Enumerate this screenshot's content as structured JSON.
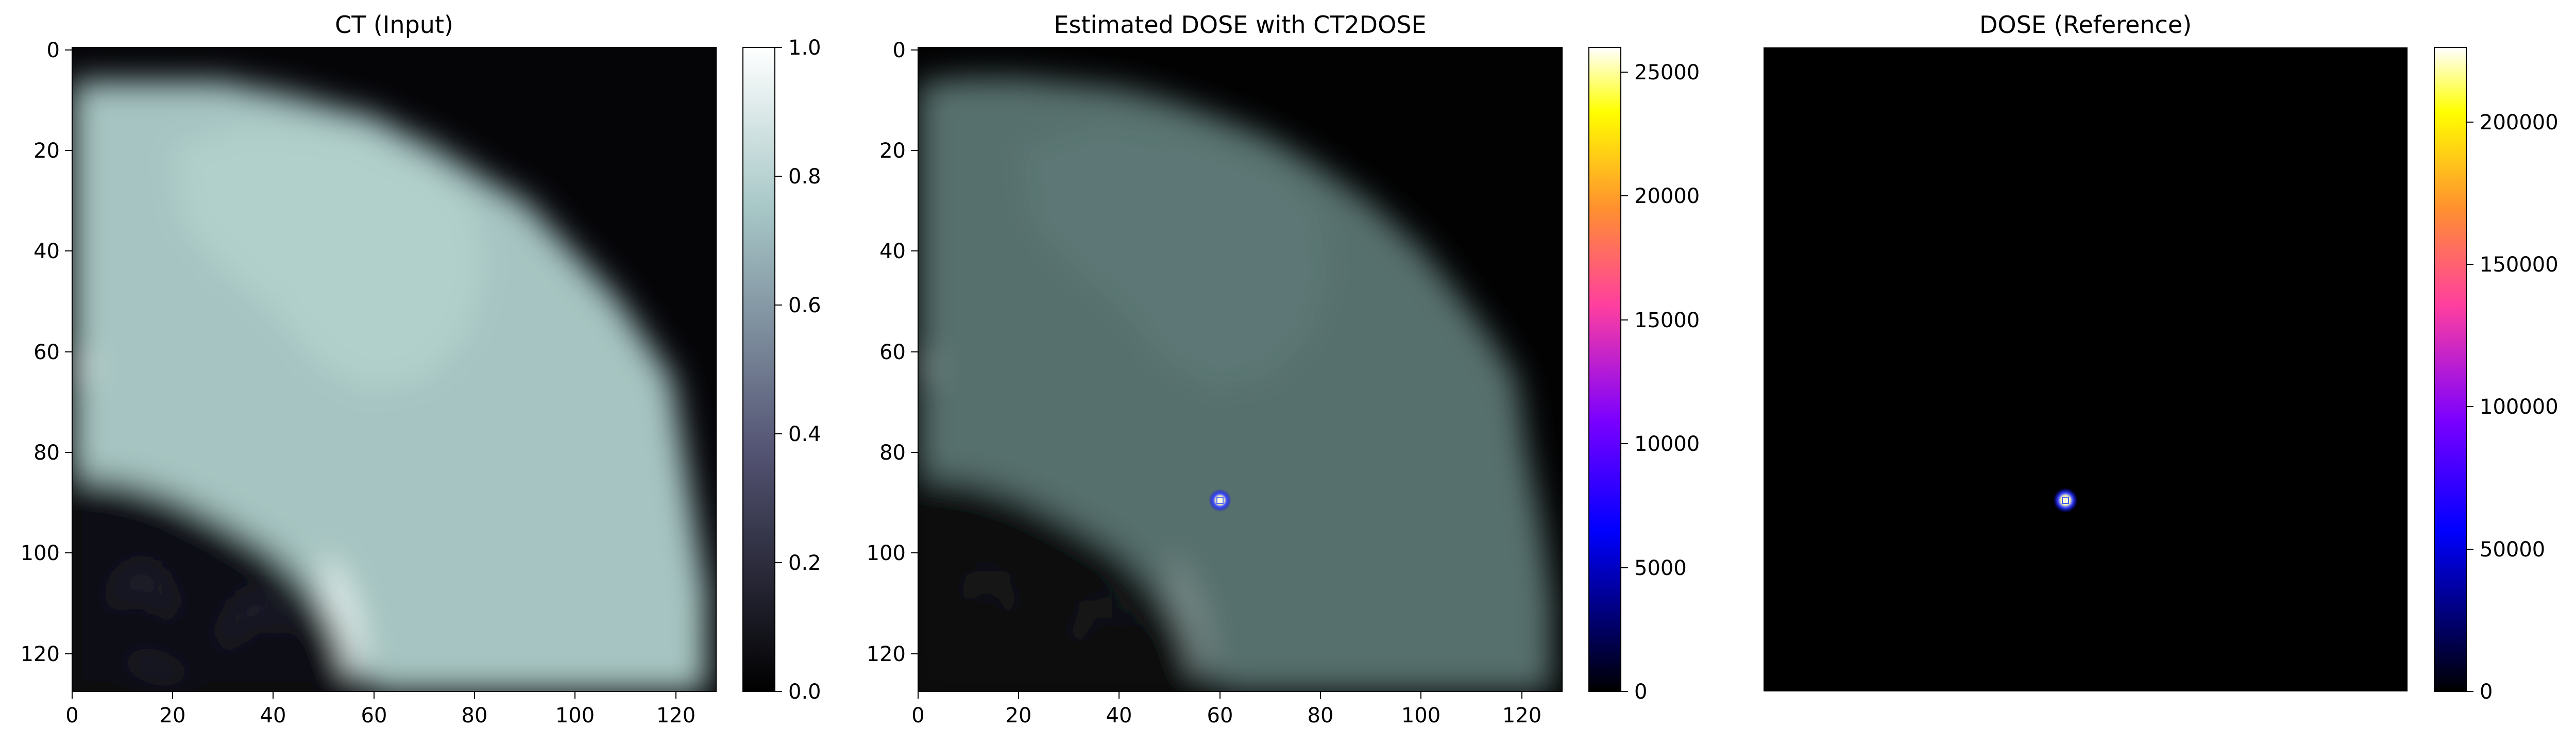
{
  "panels": [
    {
      "title": "CT (Input)",
      "x_ticks": [
        "0",
        "20",
        "40",
        "60",
        "80",
        "100",
        "120"
      ],
      "y_ticks": [
        "0",
        "20",
        "40",
        "60",
        "80",
        "100",
        "120"
      ],
      "colorbar": {
        "colormap": "bone",
        "range": [
          0,
          1.0
        ],
        "ticks": [
          "0.0",
          "0.2",
          "0.4",
          "0.6",
          "0.8",
          "1.0"
        ]
      }
    },
    {
      "title": "Estimated DOSE with CT2DOSE",
      "x_ticks": [
        "0",
        "20",
        "40",
        "60",
        "80",
        "100",
        "120"
      ],
      "y_ticks": [
        "0",
        "20",
        "40",
        "60",
        "80",
        "100",
        "120"
      ],
      "colorbar": {
        "colormap": "gnuplot2",
        "range": [
          0,
          26000
        ],
        "ticks": [
          "0",
          "5000",
          "10000",
          "15000",
          "20000",
          "25000"
        ]
      },
      "hotspot_pixel": [
        59.5,
        89.5
      ]
    },
    {
      "title": "DOSE (Reference)",
      "colorbar": {
        "colormap": "gnuplot2",
        "range": [
          0,
          226000
        ],
        "ticks": [
          "0",
          "50000",
          "100000",
          "150000",
          "200000"
        ]
      },
      "hotspot_pixel": [
        59.5,
        89.5
      ]
    }
  ],
  "image_extent": [
    0,
    128
  ],
  "colors": {
    "background": "#000000",
    "tissue": "#a9c7c4",
    "tissue_dim": "#56706d",
    "lung": "#0d0d14"
  }
}
